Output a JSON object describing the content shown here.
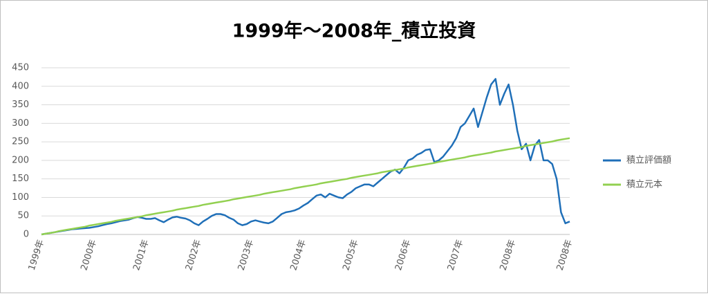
{
  "chart_data": {
    "type": "line",
    "title": "1999年～2008年_積立投資",
    "categories": [
      "1999年",
      null,
      null,
      null,
      null,
      null,
      null,
      null,
      null,
      null,
      null,
      null,
      "2000年",
      null,
      null,
      null,
      null,
      null,
      null,
      null,
      null,
      null,
      null,
      null,
      "2001年",
      null,
      null,
      null,
      null,
      null,
      null,
      null,
      null,
      null,
      null,
      null,
      "2002年",
      null,
      null,
      null,
      null,
      null,
      null,
      null,
      null,
      null,
      null,
      null,
      "2003年",
      null,
      null,
      null,
      null,
      null,
      null,
      null,
      null,
      null,
      null,
      null,
      "2004年",
      null,
      null,
      null,
      null,
      null,
      null,
      null,
      null,
      null,
      null,
      null,
      "2005年",
      null,
      null,
      null,
      null,
      null,
      null,
      null,
      null,
      null,
      null,
      null,
      "2006年",
      null,
      null,
      null,
      null,
      null,
      null,
      null,
      null,
      null,
      null,
      null,
      "2007年",
      null,
      null,
      null,
      null,
      null,
      null,
      null,
      null,
      null,
      null,
      null,
      "2008年",
      null,
      null,
      null,
      null,
      null,
      null,
      null,
      null,
      null,
      null,
      null,
      null,
      "2008年"
    ],
    "series": [
      {
        "name": "積立評価額",
        "color": "#1f6fb8",
        "values": [
          0,
          2,
          4,
          6,
          8,
          10,
          12,
          14,
          15,
          16,
          17,
          18,
          20,
          22,
          25,
          28,
          30,
          33,
          36,
          38,
          40,
          44,
          47,
          45,
          42,
          42,
          44,
          38,
          33,
          40,
          46,
          48,
          45,
          43,
          38,
          30,
          25,
          35,
          42,
          50,
          55,
          55,
          52,
          45,
          40,
          30,
          25,
          28,
          35,
          38,
          35,
          32,
          30,
          35,
          45,
          55,
          60,
          62,
          65,
          70,
          78,
          85,
          95,
          105,
          108,
          100,
          110,
          105,
          100,
          98,
          108,
          115,
          125,
          130,
          135,
          135,
          130,
          140,
          150,
          160,
          170,
          175,
          165,
          180,
          200,
          205,
          215,
          220,
          228,
          230,
          195,
          200,
          210,
          225,
          240,
          260,
          290,
          300,
          320,
          340,
          290,
          330,
          370,
          405,
          420,
          350,
          380,
          405,
          350,
          280,
          230,
          245,
          200,
          240,
          255,
          200,
          200,
          190,
          150,
          60,
          30,
          35
        ]
      },
      {
        "name": "積立元本",
        "color": "#92d050",
        "values": [
          0,
          2,
          4,
          6,
          9,
          11,
          13,
          15,
          17,
          19,
          21,
          24,
          26,
          28,
          30,
          32,
          34,
          37,
          39,
          41,
          43,
          45,
          47,
          49,
          52,
          54,
          56,
          58,
          60,
          62,
          64,
          67,
          69,
          71,
          73,
          75,
          77,
          80,
          82,
          84,
          86,
          88,
          90,
          92,
          95,
          97,
          99,
          101,
          103,
          105,
          107,
          110,
          112,
          114,
          116,
          118,
          120,
          122,
          125,
          127,
          129,
          131,
          133,
          135,
          138,
          140,
          142,
          144,
          146,
          148,
          150,
          153,
          155,
          157,
          159,
          161,
          163,
          165,
          168,
          170,
          172,
          174,
          176,
          178,
          181,
          183,
          185,
          187,
          189,
          191,
          193,
          196,
          198,
          200,
          202,
          204,
          206,
          208,
          211,
          213,
          215,
          217,
          219,
          221,
          224,
          226,
          228,
          230,
          232,
          234,
          236,
          239,
          241,
          243,
          245,
          247,
          249,
          251,
          254,
          256,
          258,
          260
        ]
      }
    ],
    "ylim": [
      0,
      450
    ],
    "yticks": [
      0,
      50,
      100,
      150,
      200,
      250,
      300,
      350,
      400,
      450
    ],
    "grid": true,
    "legend": "right"
  }
}
